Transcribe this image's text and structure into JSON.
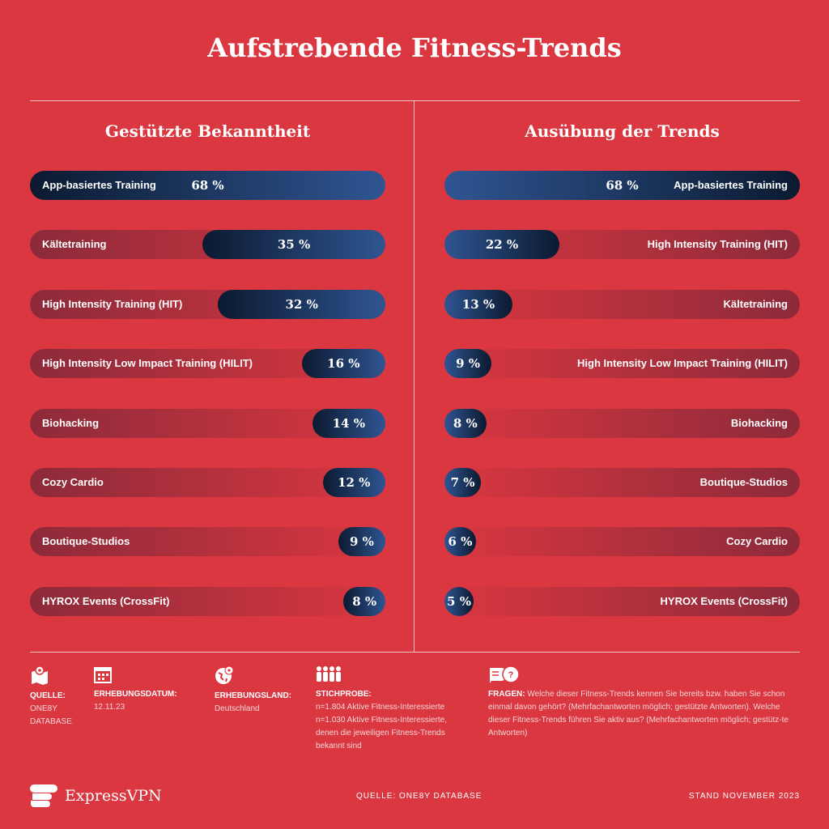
{
  "title": "Aufstrebende Fitness-Trends",
  "chart_data": [
    {
      "type": "bar",
      "orientation": "horizontal",
      "title": "Gestützte Bekanntheit",
      "unit": "%",
      "categories": [
        "App-basiertes Training",
        "Kältetraining",
        "High Intensity Training (HIT)",
        "High Intensity Low Impact Training (HILIT)",
        "Biohacking",
        "Cozy Cardio",
        "Boutique-Studios",
        "HYROX Events (CrossFit)"
      ],
      "values": [
        68,
        35,
        32,
        16,
        14,
        12,
        9,
        8
      ],
      "labels": [
        "68 %",
        "35 %",
        "32 %",
        "16 %",
        "14 %",
        "12 %",
        "9 %",
        "8 %"
      ],
      "xlim": [
        0,
        68
      ]
    },
    {
      "type": "bar",
      "orientation": "horizontal",
      "title": "Ausübung der Trends",
      "unit": "%",
      "categories": [
        "App-basiertes Training",
        "High Intensity Training  (HIT)",
        "Kältetraining",
        "High Intensity Low Impact Training (HILIT)",
        "Biohacking",
        "Boutique-Studios",
        "Cozy Cardio",
        "HYROX Events (CrossFit)"
      ],
      "values": [
        68,
        22,
        13,
        9,
        8,
        7,
        6,
        5
      ],
      "labels": [
        "68 %",
        "22 %",
        "13 %",
        "9 %",
        "8 %",
        "7 %",
        "6 %",
        "5 %"
      ],
      "xlim": [
        0,
        68
      ]
    }
  ],
  "colors": {
    "background": "#da3740",
    "bar_dark": "#0b1a30",
    "bar_light": "#2f5592",
    "track": "#8c2a3a"
  },
  "meta": {
    "source": {
      "label": "QUELLE:",
      "value": "ONE8Y DATABASE",
      "icon": "map-pin-icon"
    },
    "date": {
      "label": "ERHEBUNGSDATUM:",
      "value": "12.11.23",
      "icon": "calendar-icon"
    },
    "country": {
      "label": "ERHEBUNGSLAND:",
      "value": "Deutschland",
      "icon": "globe-icon"
    },
    "sample": {
      "label": "STICHPROBE:",
      "value1": "n=1.804 Aktive Fitness-Interessierte",
      "value2": "n=1.030 Aktive Fitness-Interessierte, denen die jeweiligen Fitness-Trends bekannt sind",
      "icon": "people-icon"
    },
    "questions": {
      "label": "FRAGEN:",
      "value": "Welche dieser Fitness-Trends kennen Sie bereits bzw. haben Sie schon einmal davon gehört? (Mehrfachantworten möglich; gestützte Antworten). Welche dieser Fitness-Trends führen Sie aktiv aus? (Mehrfachantworten möglich; gestütz-te Antworten)",
      "icon": "chat-question-icon"
    }
  },
  "footer": {
    "brand": "ExpressVPN",
    "source": "QUELLE: ONE8Y DATABASE",
    "date": "STAND NOVEMBER 2023"
  }
}
